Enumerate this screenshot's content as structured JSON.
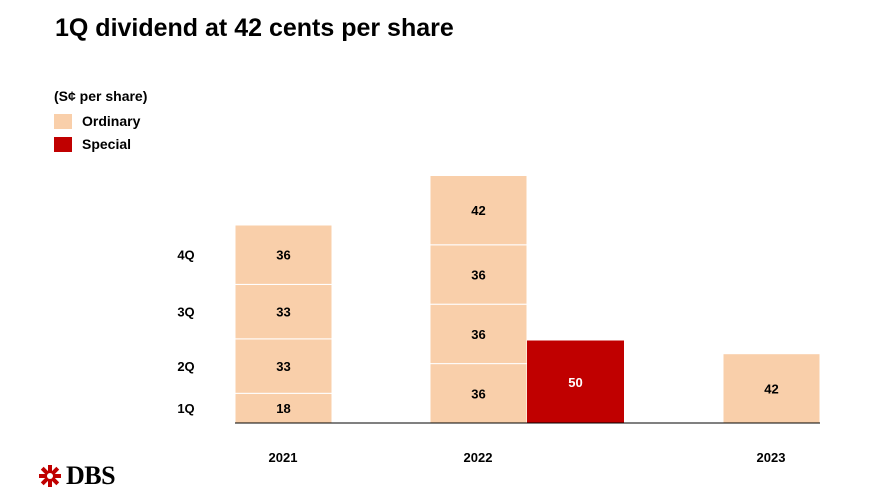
{
  "title": "1Q dividend at 42 cents per share",
  "unit_label": "(S¢ per share)",
  "legend": [
    {
      "name": "Ordinary",
      "color": "#f9cfaa"
    },
    {
      "name": "Special",
      "color": "#c00000"
    }
  ],
  "row_labels": [
    "1Q",
    "2Q",
    "3Q",
    "4Q"
  ],
  "logo": {
    "text": "DBS",
    "icon": "dbs-logo-icon",
    "color": "#c00000"
  },
  "chart_data": {
    "type": "bar",
    "stacked": true,
    "categories": [
      "2021",
      "2022",
      "2023"
    ],
    "series": [
      {
        "name": "Ordinary",
        "color": "#f9cfaa",
        "stacks": [
          [
            18,
            33,
            33,
            36
          ],
          [
            36,
            36,
            36,
            42
          ],
          [
            42
          ]
        ]
      },
      {
        "name": "Special",
        "color": "#c00000",
        "stacks": [
          [],
          [
            50
          ],
          []
        ]
      }
    ],
    "ylim": [
      0,
      180
    ]
  }
}
